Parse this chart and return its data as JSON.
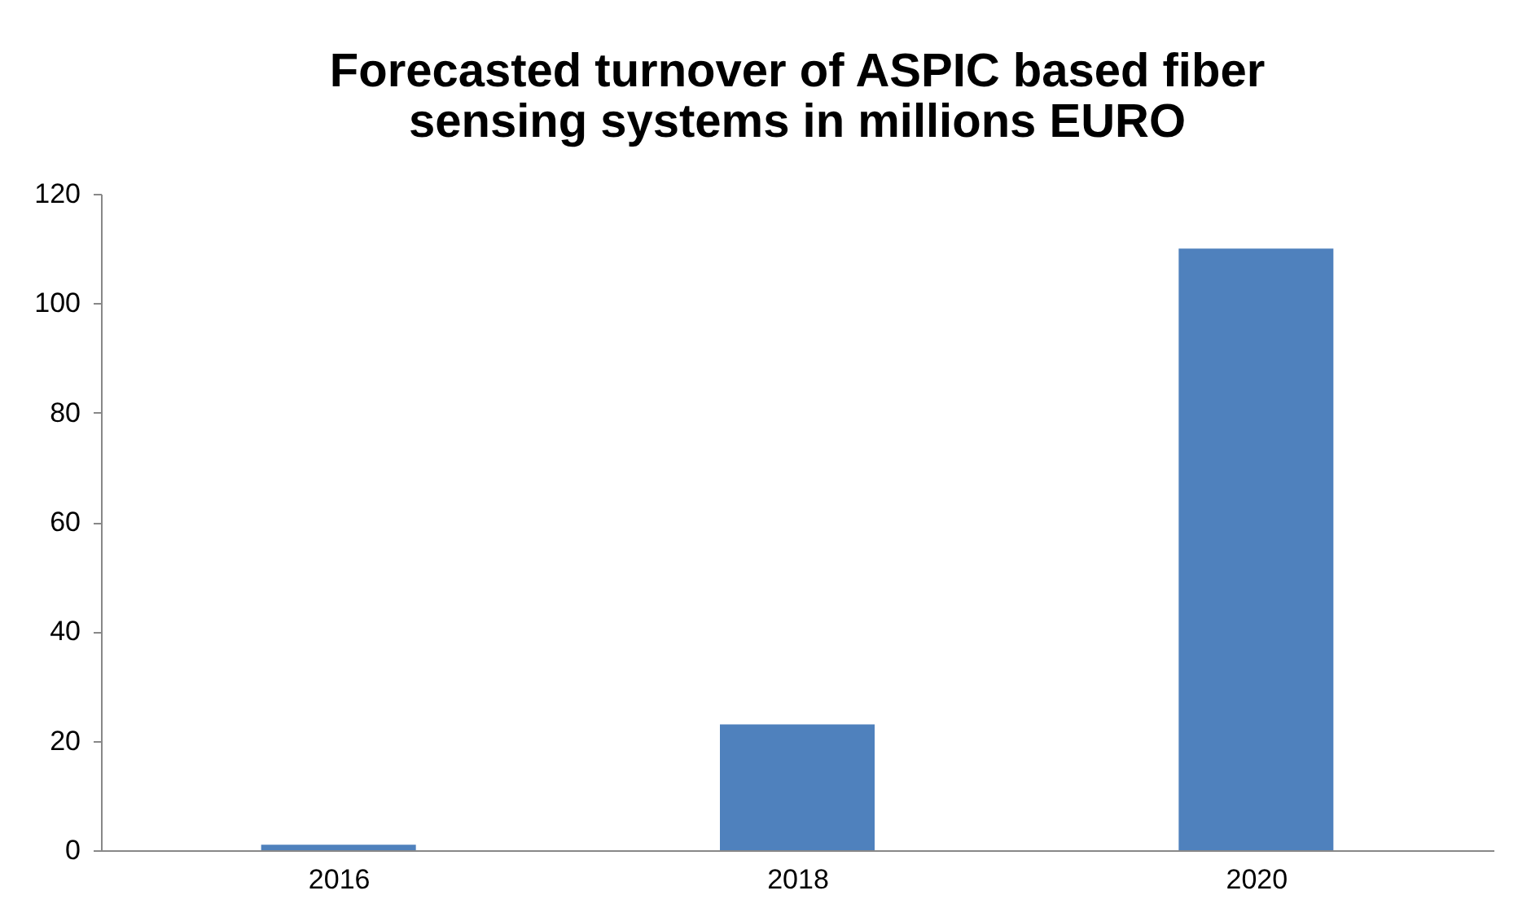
{
  "chart_data": {
    "type": "bar",
    "title": [
      "Forecasted turnover of ASPIC based fiber",
      "sensing systems in millions EURO"
    ],
    "categories": [
      "2016",
      "2018",
      "2020"
    ],
    "values": [
      1,
      23,
      110
    ],
    "color": "#4f81bd",
    "ylim": [
      0,
      120
    ],
    "yticks": [
      0,
      20,
      40,
      60,
      80,
      100,
      120
    ],
    "grid": false
  }
}
